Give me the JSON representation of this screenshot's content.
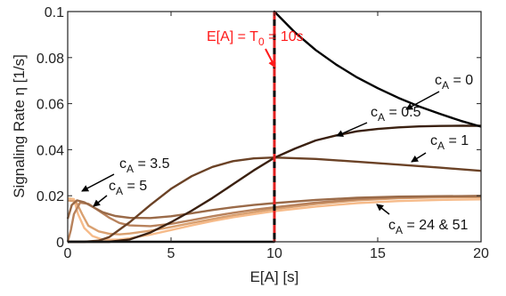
{
  "chart_data": {
    "type": "line",
    "title": "",
    "xlabel": "E[A] [s]",
    "ylabel": "Signaling Rate η [1/s]",
    "xlim": [
      0,
      20
    ],
    "ylim": [
      0,
      0.1
    ],
    "xticks": [
      "0",
      "5",
      "10",
      "15",
      "20"
    ],
    "yticks": [
      "0",
      "0.02",
      "0.04",
      "0.06",
      "0.08",
      "0.1"
    ],
    "grid": false,
    "legend": "none",
    "vline": {
      "x": 10,
      "colors": [
        "#000000",
        "#e02020"
      ],
      "style": "dashed"
    },
    "annotations": {
      "threshold": "E[A] = T0 = 10s",
      "c0": "cA = 0",
      "c05": "cA = 0.5",
      "c1": "cA = 1",
      "c35": "cA = 3.5",
      "c5": "cA = 5",
      "c24": "cA = 24 & 51"
    },
    "series": [
      {
        "name": "cA = 0",
        "color": "#000000",
        "x": [
          0,
          9.99,
          10,
          11,
          12,
          13,
          14,
          15,
          16,
          17,
          18,
          19,
          20
        ],
        "y": [
          0,
          0,
          0.1,
          0.0909,
          0.0833,
          0.0769,
          0.0714,
          0.0667,
          0.0625,
          0.0588,
          0.0556,
          0.0526,
          0.05
        ]
      },
      {
        "name": "cA = 0.5",
        "color": "#3a2010",
        "x": [
          0,
          2,
          3,
          4,
          5,
          6,
          7,
          8,
          9,
          10,
          11,
          12,
          13,
          14,
          15,
          16,
          17,
          18,
          19,
          20
        ],
        "y": [
          0,
          0,
          0.001,
          0.004,
          0.0085,
          0.0135,
          0.019,
          0.025,
          0.031,
          0.0365,
          0.0405,
          0.044,
          0.0462,
          0.048,
          0.049,
          0.0497,
          0.0501,
          0.0503,
          0.0504,
          0.0504
        ]
      },
      {
        "name": "cA = 1",
        "color": "#6b4226",
        "x": [
          0,
          0.8,
          1.5,
          2,
          3,
          4,
          5,
          6,
          7,
          8,
          9,
          10,
          12,
          14,
          16,
          18,
          20
        ],
        "y": [
          0,
          0,
          0.0005,
          0.002,
          0.0085,
          0.016,
          0.023,
          0.0285,
          0.0325,
          0.035,
          0.0362,
          0.0366,
          0.036,
          0.0348,
          0.0335,
          0.0322,
          0.0308
        ]
      },
      {
        "name": "cA = 3.5",
        "color": "#9a6a48",
        "x": [
          0,
          0.2,
          0.45,
          0.8,
          1.2,
          1.7,
          2.3,
          3,
          4,
          5,
          6,
          7,
          8,
          9,
          10,
          12,
          14,
          16,
          18,
          20
        ],
        "y": [
          0.01,
          0.016,
          0.018,
          0.0172,
          0.0152,
          0.0128,
          0.0112,
          0.0104,
          0.0103,
          0.0111,
          0.0124,
          0.0138,
          0.015,
          0.016,
          0.0168,
          0.0182,
          0.0191,
          0.0196,
          0.0198,
          0.0199
        ]
      },
      {
        "name": "cA = 5",
        "color": "#b8825c",
        "x": [
          0,
          0.15,
          0.3,
          0.6,
          1,
          1.5,
          2,
          2.5,
          3,
          4,
          5,
          6,
          7,
          8,
          9,
          10,
          12,
          14,
          16,
          18,
          20
        ],
        "y": [
          0,
          0.005,
          0.012,
          0.017,
          0.0165,
          0.0135,
          0.0105,
          0.0082,
          0.0071,
          0.0068,
          0.0078,
          0.0094,
          0.0111,
          0.0126,
          0.0139,
          0.015,
          0.017,
          0.0185,
          0.0193,
          0.0197,
          0.0199
        ]
      },
      {
        "name": "cA = 24",
        "color": "#d9a070",
        "x": [
          0,
          0.4,
          0.7,
          1,
          1.5,
          2,
          2.5,
          3,
          4,
          5,
          6,
          7,
          8,
          9,
          10,
          12,
          14,
          16,
          18,
          20
        ],
        "y": [
          0.018,
          0.0175,
          0.012,
          0.007,
          0.0045,
          0.0035,
          0.0032,
          0.0036,
          0.0048,
          0.0064,
          0.0082,
          0.0099,
          0.0115,
          0.0129,
          0.0142,
          0.0164,
          0.018,
          0.0189,
          0.0193,
          0.0194
        ]
      },
      {
        "name": "cA = 51",
        "color": "#f6bb8a",
        "x": [
          0,
          0.3,
          0.5,
          0.8,
          1.2,
          1.6,
          2,
          2.5,
          3,
          4,
          5,
          6,
          7,
          8,
          9,
          10,
          12,
          14,
          16,
          18,
          20
        ],
        "y": [
          0.019,
          0.0185,
          0.012,
          0.006,
          0.0025,
          0.0012,
          0.0009,
          0.001,
          0.0015,
          0.0031,
          0.0051,
          0.0071,
          0.009,
          0.0106,
          0.012,
          0.0133,
          0.0153,
          0.0168,
          0.0177,
          0.0182,
          0.0184
        ]
      }
    ]
  }
}
